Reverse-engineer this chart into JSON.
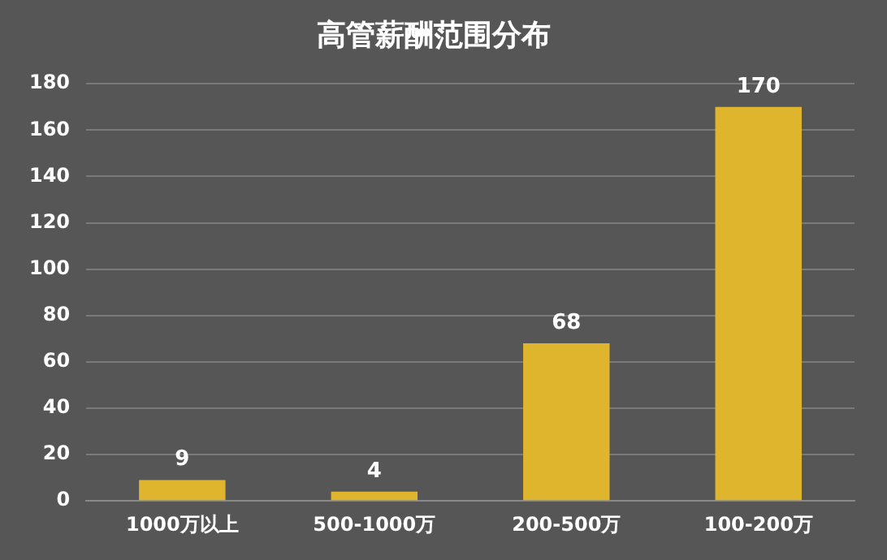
{
  "chart_data": {
    "type": "bar",
    "title": "高管薪酬范围分布",
    "categories": [
      "1000万以上",
      "500-1000万",
      "200-500万",
      "100-200万"
    ],
    "values": [
      9,
      4,
      68,
      170
    ],
    "color": "#e0b52e",
    "ylim": [
      0,
      180
    ],
    "yticks": [
      0,
      20,
      40,
      60,
      80,
      100,
      120,
      140,
      160,
      180
    ],
    "grid": "y",
    "legend": false,
    "data_labels": true
  }
}
